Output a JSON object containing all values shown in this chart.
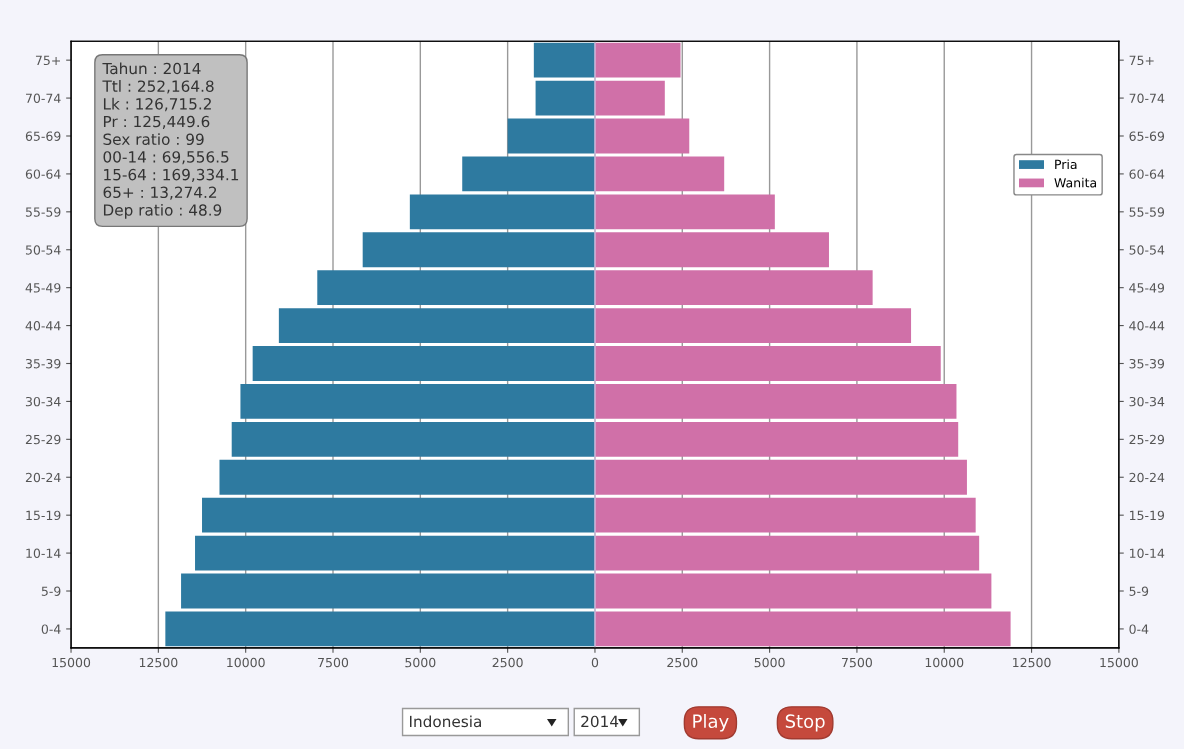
{
  "chart_data": {
    "type": "bar",
    "orientation": "horizontal",
    "stacked": true,
    "categories": [
      "75+",
      "70-74",
      "65-69",
      "60-64",
      "55-59",
      "50-54",
      "45-49",
      "40-44",
      "35-39",
      "30-34",
      "25-29",
      "20-24",
      "15-19",
      "10-14",
      "5-9",
      "0-4"
    ],
    "series": [
      {
        "name": "Pria",
        "color": "#2e7aa0",
        "values": [
          -1750,
          -1700,
          -2500,
          -3800,
          -5300,
          -6650,
          -7950,
          -9050,
          -9800,
          -10150,
          -10400,
          -10750,
          -11250,
          -11450,
          -11850,
          -12300
        ]
      },
      {
        "name": "Wanita",
        "color": "#d070a8",
        "values": [
          2450,
          2000,
          2700,
          3700,
          5150,
          6700,
          7950,
          9050,
          9900,
          10350,
          10400,
          10650,
          10900,
          11000,
          11350,
          11900
        ]
      }
    ],
    "xlim": [
      -15000,
      15000
    ],
    "xticks": [
      {
        "value": -15000,
        "label": "15000"
      },
      {
        "value": -12500,
        "label": "12500"
      },
      {
        "value": -10000,
        "label": "10000"
      },
      {
        "value": -7500,
        "label": "7500"
      },
      {
        "value": -5000,
        "label": "5000"
      },
      {
        "value": -2500,
        "label": "2500"
      },
      0,
      2500,
      5000,
      7500,
      10000,
      12500,
      15000
    ],
    "grid": "x",
    "legend": "right",
    "annotations": [
      "Tahun : 2014\nTtl : 252,164.8\nLk : 126,715.2\nPr : 125,449.6\nSex ratio : 99\n00-14 : 69,556.5\n15-64 : 169,334.1\n65+ : 13,274.2\nDep ratio : 48.9",
      "Indonesia",
      "2014",
      "Play",
      "Stop"
    ]
  }
}
